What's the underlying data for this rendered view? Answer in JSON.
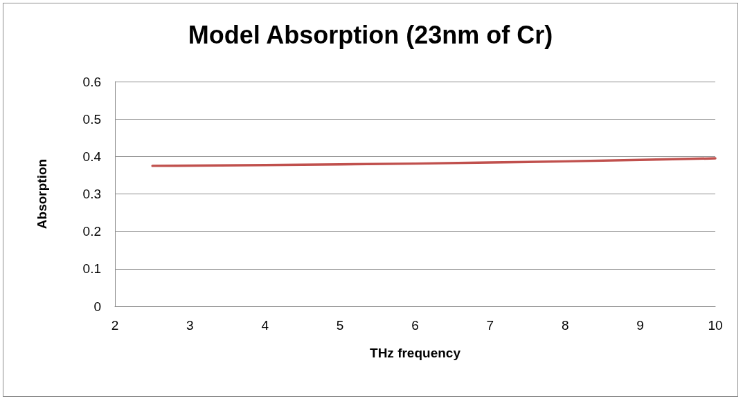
{
  "chart_data": {
    "type": "line",
    "title": "Model Absorption (23nm of Cr)",
    "xlabel": "THz frequency",
    "ylabel": "Absorption",
    "series": [
      {
        "color": "#c0504d",
        "x": [
          2.5,
          4,
          5,
          6,
          7,
          8,
          9,
          10
        ],
        "values": [
          0.375,
          0.377,
          0.379,
          0.381,
          0.384,
          0.387,
          0.391,
          0.395
        ]
      }
    ],
    "xlim": [
      2,
      10
    ],
    "xticks": [
      2,
      3,
      4,
      5,
      6,
      7,
      8,
      9,
      10
    ],
    "ylim": [
      0,
      0.6
    ],
    "yticks": [
      0,
      0.1,
      0.2,
      0.3,
      0.4,
      0.5,
      0.6
    ],
    "grid": "y",
    "marker": "none",
    "line_style": "solid"
  }
}
